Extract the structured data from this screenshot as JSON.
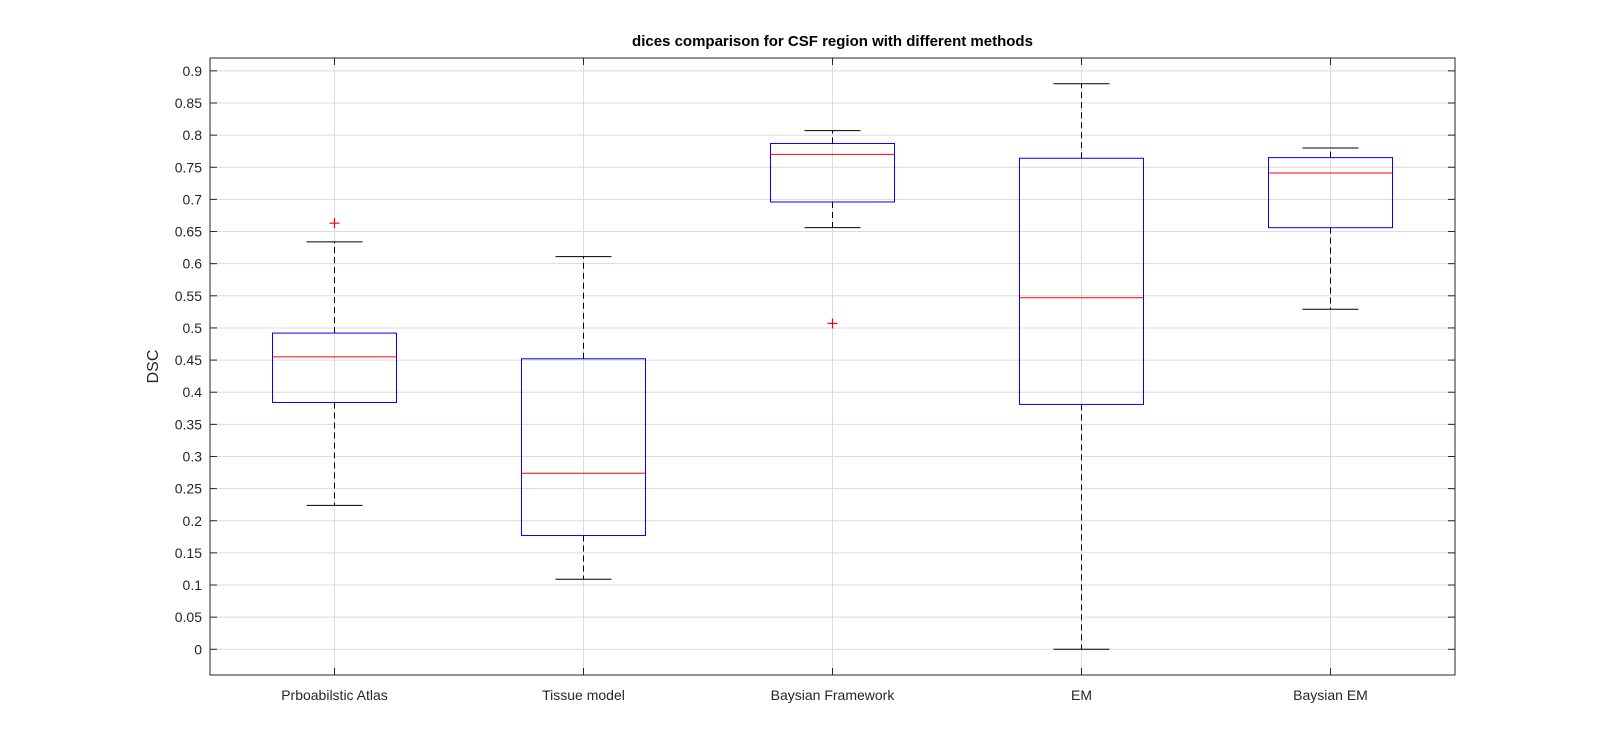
{
  "chart_data": {
    "type": "boxplot",
    "title": "dices comparison for CSF region with different methods",
    "xlabel": "",
    "ylabel": "DSC",
    "ylim": [
      -0.04,
      0.92
    ],
    "yticks": [
      "0",
      "0.05",
      "0.1",
      "0.15",
      "0.2",
      "0.25",
      "0.3",
      "0.35",
      "0.4",
      "0.45",
      "0.5",
      "0.55",
      "0.6",
      "0.65",
      "0.7",
      "0.75",
      "0.8",
      "0.85",
      "0.9"
    ],
    "grid": true,
    "categories": [
      "Prboabilstic Atlas",
      "Tissue model",
      "Baysian Framework",
      "EM",
      "Baysian EM"
    ],
    "boxes": [
      {
        "whisker_low": 0.224,
        "q1": 0.384,
        "median": 0.455,
        "q3": 0.492,
        "whisker_high": 0.634,
        "outliers": [
          0.663
        ]
      },
      {
        "whisker_low": 0.109,
        "q1": 0.177,
        "median": 0.274,
        "q3": 0.452,
        "whisker_high": 0.611,
        "outliers": []
      },
      {
        "whisker_low": 0.656,
        "q1": 0.696,
        "median": 0.77,
        "q3": 0.787,
        "whisker_high": 0.807,
        "outliers": [
          0.507
        ]
      },
      {
        "whisker_low": 0.0,
        "q1": 0.381,
        "median": 0.547,
        "q3": 0.764,
        "whisker_high": 0.88,
        "outliers": []
      },
      {
        "whisker_low": 0.529,
        "q1": 0.656,
        "median": 0.741,
        "q3": 0.765,
        "whisker_high": 0.78,
        "outliers": []
      }
    ],
    "colors": {
      "box": "#0000ff",
      "median": "#ff0000",
      "whisker": "#000000",
      "outlier": "#ff0000",
      "grid": "#dcdcdc",
      "axis": "#262626"
    }
  }
}
